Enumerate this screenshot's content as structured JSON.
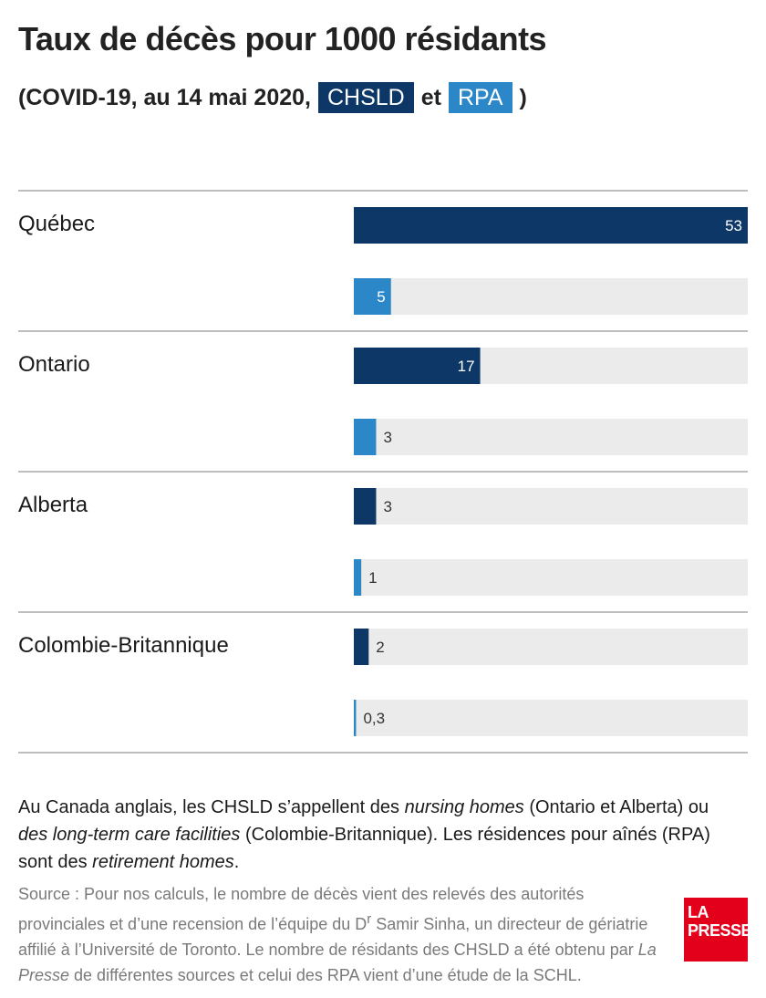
{
  "title": "Taux de décès pour 1000 résidants",
  "subtitle": {
    "prefix": "(COVID-19, au 14 mai 2020,",
    "chip1": "CHSLD",
    "middle": "et",
    "chip2": "RPA",
    "suffix": ")"
  },
  "chart_data": {
    "type": "bar",
    "orientation": "horizontal",
    "categories": [
      "Québec",
      "Ontario",
      "Alberta",
      "Colombie-Britannique"
    ],
    "series": [
      {
        "name": "CHSLD",
        "color": "#0c3767",
        "values": [
          53,
          17,
          3,
          2
        ],
        "labels": [
          "53",
          "17",
          "3",
          "2"
        ]
      },
      {
        "name": "RPA",
        "color": "#2b87c8",
        "values": [
          5,
          3,
          1,
          0.3
        ],
        "labels": [
          "5",
          "3",
          "1",
          "0,3"
        ]
      }
    ],
    "xlim": [
      0,
      53
    ],
    "track_color": "#ebebeb",
    "grid": false,
    "legend": "in subtitle"
  },
  "note": {
    "p1": "Au Canada anglais, les CHSLD s’appellent des ",
    "em1": "nursing homes",
    "p2": " (Ontario et Alberta) ou ",
    "em2": "des long-term care facilities",
    "p3": " (Colombie-Britannique). Les résidences pour aînés (RPA) sont des ",
    "em3": "retirement homes",
    "p4": "."
  },
  "source": {
    "p1": "Source : Pour nos calculs, le nombre de décès vient des relevés des autorités provinciales et d’une recension de l’équipe du D",
    "sup": "r",
    "p2": " Samir Sinha, un directeur de gériatrie affilié à l’Université de Toronto. Le nombre de résidants des CHSLD a été obtenu par ",
    "em": "La Presse",
    "p3": " de différentes sources et celui des RPA vient d’une étude de la SCHL."
  },
  "logo": {
    "line1": "LA",
    "line2": "PRESSE",
    "color": "#e3001b"
  }
}
